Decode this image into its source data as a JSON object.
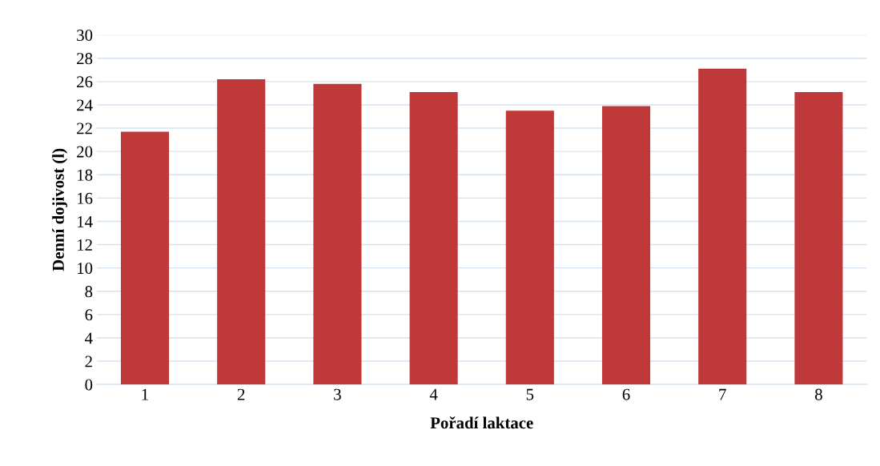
{
  "chart_data": {
    "type": "bar",
    "xlabel": "Pořadí laktace",
    "ylabel": "Denní dojivost (l)",
    "categories": [
      "1",
      "2",
      "3",
      "4",
      "5",
      "6",
      "7",
      "8"
    ],
    "values": [
      21.7,
      26.2,
      25.8,
      25.1,
      23.5,
      23.9,
      27.1,
      25.1
    ],
    "color": "#c0393a",
    "ylim": [
      0,
      30
    ],
    "yticks": [
      0,
      2,
      4,
      6,
      8,
      10,
      12,
      14,
      16,
      18,
      20,
      22,
      24,
      26,
      28,
      30
    ],
    "grid": "y"
  }
}
